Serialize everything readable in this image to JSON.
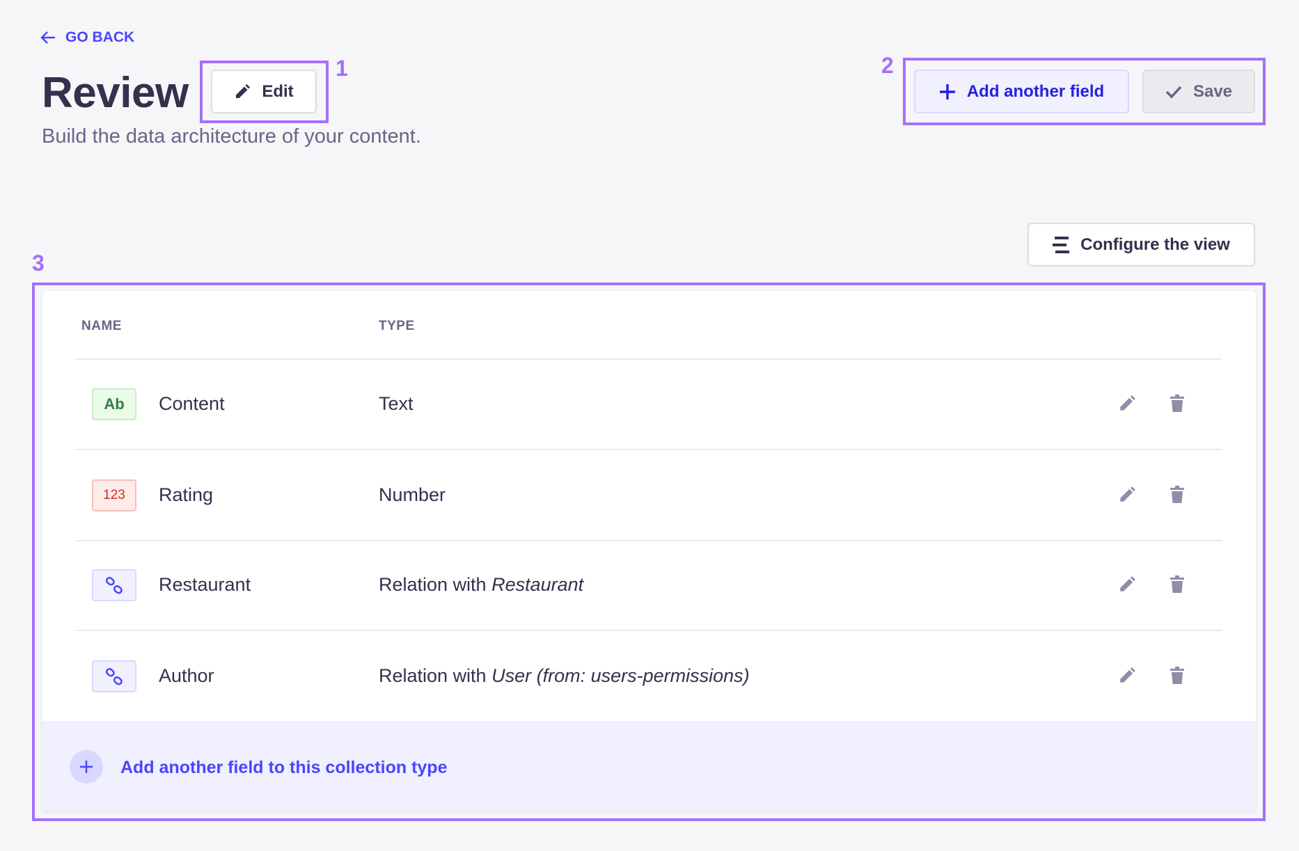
{
  "header": {
    "go_back": "GO BACK",
    "title": "Review",
    "edit_label": "Edit",
    "subtitle": "Build the data architecture of your content.",
    "add_field_label": "Add another field",
    "save_label": "Save",
    "configure_label": "Configure the view"
  },
  "annotations": [
    "1",
    "2",
    "3"
  ],
  "table": {
    "columns": [
      "NAME",
      "TYPE"
    ],
    "rows": [
      {
        "badge": "Ab",
        "badge_kind": "text",
        "name": "Content",
        "type": "Text",
        "type_target": ""
      },
      {
        "badge": "123",
        "badge_kind": "number",
        "name": "Rating",
        "type": "Number",
        "type_target": ""
      },
      {
        "badge": "",
        "badge_kind": "relation",
        "name": "Restaurant",
        "type": "Relation with ",
        "type_target": "Restaurant"
      },
      {
        "badge": "",
        "badge_kind": "relation",
        "name": "Author",
        "type": "Relation with ",
        "type_target": "User (from: users-permissions)"
      }
    ],
    "footer_label": "Add another field to this collection type"
  },
  "colors": {
    "primary": "#4945ff",
    "annotation": "#a66ffa",
    "text_badge": "#328048",
    "number_badge": "#d02b20"
  }
}
